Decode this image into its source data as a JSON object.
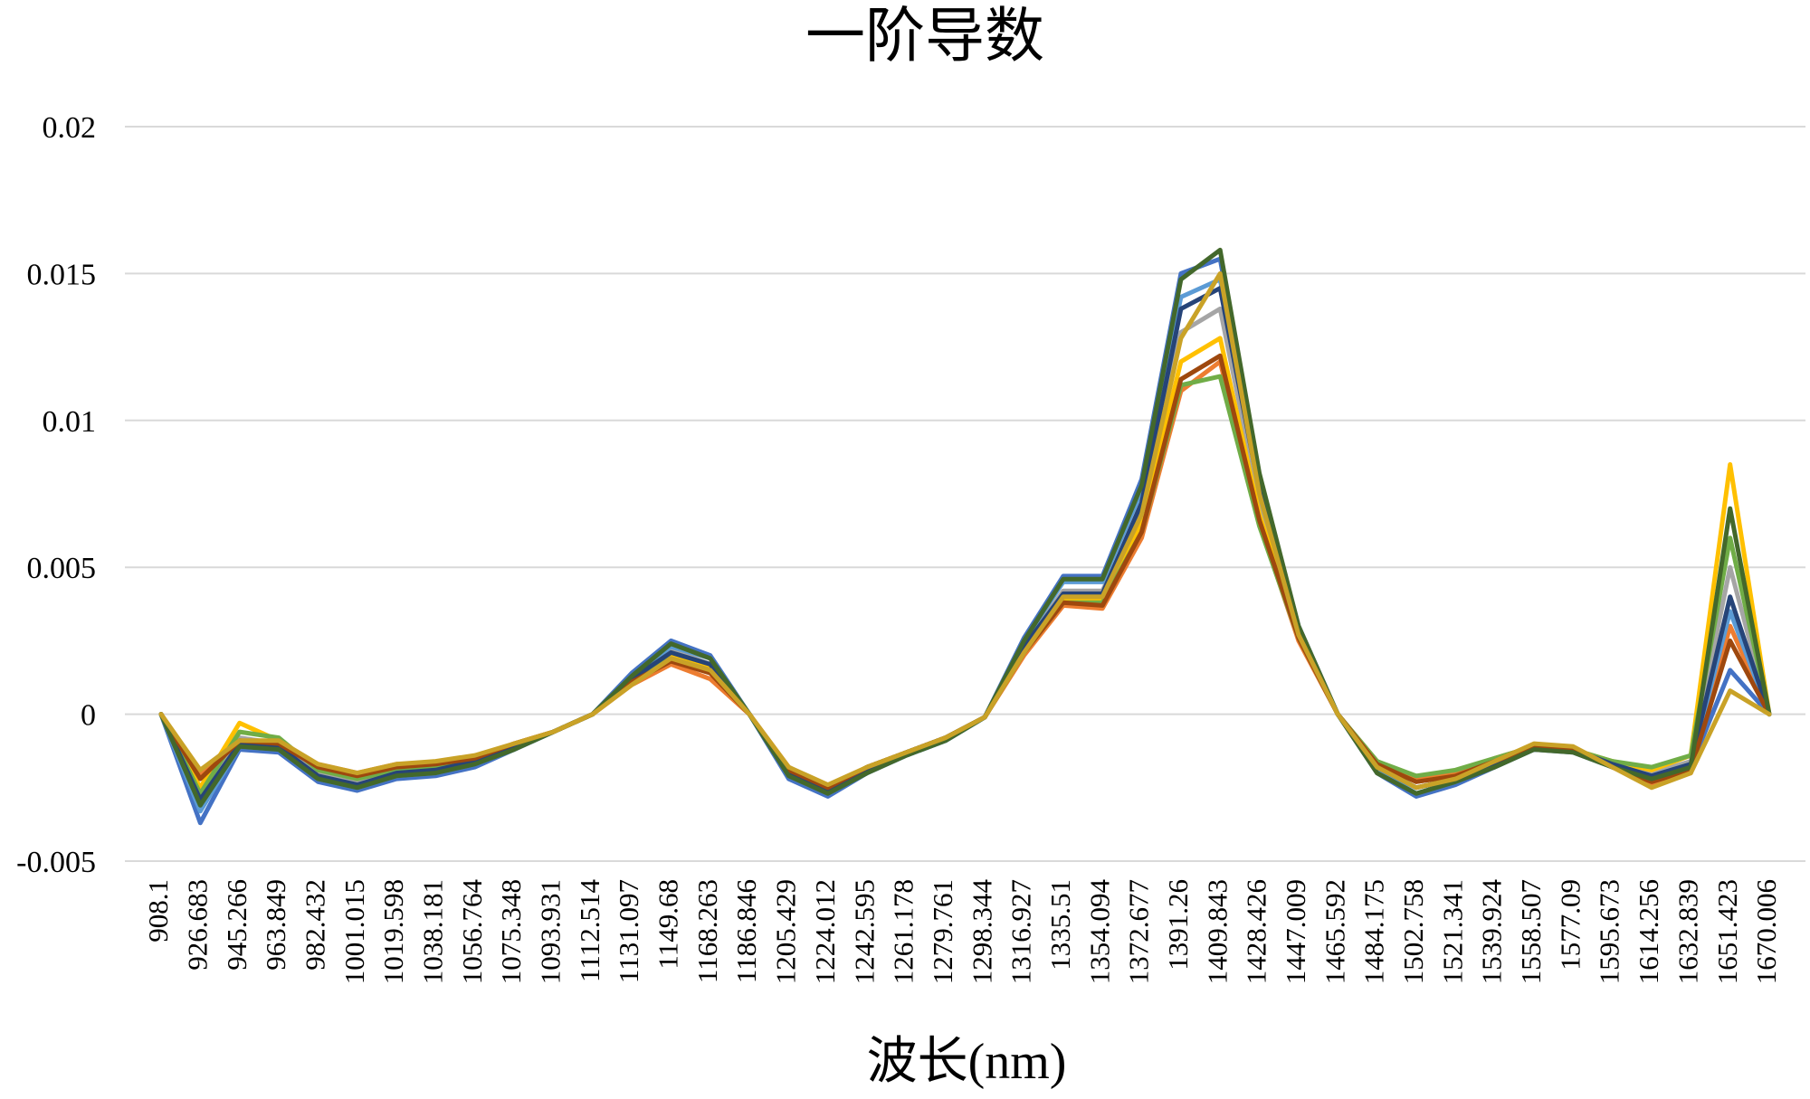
{
  "chart_data": {
    "type": "line",
    "title": "一阶导数",
    "xlabel": "波长(nm)",
    "ylabel": "",
    "ylim": [
      -0.005,
      0.02
    ],
    "grid": true,
    "legend": "none",
    "y_ticks": [
      "-0.005",
      "0",
      "0.005",
      "0.01",
      "0.015",
      "0.02"
    ],
    "y_tick_values": [
      -0.005,
      0,
      0.005,
      0.01,
      0.015,
      0.02
    ],
    "x_tick_labels": [
      "908.1",
      "926.683",
      "945.266",
      "963.849",
      "982.432",
      "1001.015",
      "1019.598",
      "1038.181",
      "1056.764",
      "1075.348",
      "1093.931",
      "1112.514",
      "1131.097",
      "1149.68",
      "1168.263",
      "1186.846",
      "1205.429",
      "1224.012",
      "1242.595",
      "1261.178",
      "1279.761",
      "1298.344",
      "1316.927",
      "1335.51",
      "1354.094",
      "1372.677",
      "1391.26",
      "1409.843",
      "1428.426",
      "1447.009",
      "1465.592",
      "1484.175",
      "1502.758",
      "1521.341",
      "1539.924",
      "1558.507",
      "1577.09",
      "1595.673",
      "1614.256",
      "1632.839",
      "1651.423",
      "1670.006"
    ],
    "x": [
      908.1,
      926.683,
      945.266,
      963.849,
      982.432,
      1001.015,
      1019.598,
      1038.181,
      1056.764,
      1075.348,
      1093.931,
      1112.514,
      1131.097,
      1149.68,
      1168.263,
      1186.846,
      1205.429,
      1224.012,
      1242.595,
      1261.178,
      1279.761,
      1298.344,
      1316.927,
      1335.51,
      1354.094,
      1372.677,
      1391.26,
      1409.843,
      1428.426,
      1447.009,
      1465.592,
      1484.175,
      1502.758,
      1521.341,
      1539.924,
      1558.507,
      1577.09,
      1595.673,
      1614.256,
      1632.839,
      1651.423,
      1670.006
    ],
    "series": [
      {
        "color": "#4472c4",
        "values": [
          0,
          -0.0037,
          -0.0012,
          -0.0013,
          -0.0023,
          -0.0026,
          -0.0022,
          -0.0021,
          -0.0018,
          -0.0012,
          -0.0006,
          0.0,
          0.0014,
          0.0025,
          0.002,
          0.0,
          -0.0022,
          -0.0028,
          -0.002,
          -0.0014,
          -0.0009,
          -0.0001,
          0.0026,
          0.0047,
          0.0047,
          0.008,
          0.015,
          0.0155,
          0.008,
          0.003,
          0.0,
          -0.002,
          -0.0028,
          -0.0024,
          -0.0018,
          -0.0012,
          -0.0013,
          -0.0018,
          -0.0022,
          -0.0018,
          0.0015,
          0
        ]
      },
      {
        "color": "#ed7d31",
        "values": [
          0,
          -0.002,
          -0.001,
          -0.001,
          -0.0017,
          -0.002,
          -0.0017,
          -0.0017,
          -0.0015,
          -0.001,
          -0.0006,
          0.0,
          0.001,
          0.0017,
          0.0012,
          0.0,
          -0.0018,
          -0.0025,
          -0.0018,
          -0.0013,
          -0.0008,
          -0.0001,
          0.002,
          0.0037,
          0.0036,
          0.006,
          0.011,
          0.012,
          0.0065,
          0.0025,
          0.0,
          -0.0016,
          -0.0022,
          -0.002,
          -0.0015,
          -0.0011,
          -0.0012,
          -0.0018,
          -0.0024,
          -0.002,
          0.003,
          0
        ]
      },
      {
        "color": "#a5a5a5",
        "values": [
          0,
          -0.003,
          -0.0008,
          -0.001,
          -0.002,
          -0.0023,
          -0.002,
          -0.0019,
          -0.0016,
          -0.0011,
          -0.0006,
          0.0,
          0.0012,
          0.0022,
          0.0017,
          0.0,
          -0.002,
          -0.0026,
          -0.0019,
          -0.0013,
          -0.0008,
          -0.0001,
          0.0023,
          0.0042,
          0.0042,
          0.007,
          0.013,
          0.0138,
          0.0072,
          0.0028,
          0.0,
          -0.0018,
          -0.0025,
          -0.0022,
          -0.0016,
          -0.0011,
          -0.0012,
          -0.0017,
          -0.002,
          -0.0016,
          0.005,
          0
        ]
      },
      {
        "color": "#ffc000",
        "values": [
          0,
          -0.0025,
          -0.0003,
          -0.0009,
          -0.0018,
          -0.0021,
          -0.0018,
          -0.0017,
          -0.0015,
          -0.001,
          -0.0006,
          0.0,
          0.0011,
          0.002,
          0.0016,
          0.0,
          -0.0019,
          -0.0025,
          -0.0018,
          -0.0013,
          -0.0008,
          -0.0001,
          0.0021,
          0.0039,
          0.0039,
          0.0065,
          0.012,
          0.0128,
          0.0068,
          0.0027,
          0.0,
          -0.0017,
          -0.0023,
          -0.0021,
          -0.0016,
          -0.0011,
          -0.0012,
          -0.0016,
          -0.0019,
          -0.0014,
          0.0085,
          0
        ]
      },
      {
        "color": "#5b9bd5",
        "values": [
          0,
          -0.0033,
          -0.0011,
          -0.0012,
          -0.0022,
          -0.0025,
          -0.0021,
          -0.002,
          -0.0017,
          -0.0012,
          -0.0006,
          0.0,
          0.0013,
          0.0023,
          0.0019,
          0.0,
          -0.0021,
          -0.0027,
          -0.002,
          -0.0014,
          -0.0009,
          -0.0001,
          0.0025,
          0.0045,
          0.0045,
          0.0076,
          0.0142,
          0.0148,
          0.0078,
          0.0029,
          0.0,
          -0.0019,
          -0.0027,
          -0.0023,
          -0.0017,
          -0.0012,
          -0.0012,
          -0.0017,
          -0.0021,
          -0.0017,
          0.0035,
          0
        ]
      },
      {
        "color": "#70ad47",
        "values": [
          0,
          -0.0027,
          -0.0006,
          -0.0008,
          -0.0019,
          -0.0022,
          -0.0019,
          -0.0018,
          -0.0016,
          -0.0011,
          -0.0006,
          0.0,
          0.0011,
          0.0019,
          0.0015,
          0.0,
          -0.0019,
          -0.0025,
          -0.0018,
          -0.0013,
          -0.0008,
          -0.0001,
          0.0021,
          0.0038,
          0.0038,
          0.0062,
          0.0112,
          0.0115,
          0.0064,
          0.0026,
          0.0,
          -0.0016,
          -0.0021,
          -0.0019,
          -0.0015,
          -0.0011,
          -0.0012,
          -0.0016,
          -0.0018,
          -0.0014,
          0.006,
          0
        ]
      },
      {
        "color": "#264478",
        "values": [
          0,
          -0.0029,
          -0.001,
          -0.0011,
          -0.0021,
          -0.0024,
          -0.002,
          -0.0019,
          -0.0016,
          -0.0011,
          -0.0006,
          0.0,
          0.0012,
          0.0021,
          0.0017,
          0.0,
          -0.002,
          -0.0026,
          -0.0019,
          -0.0013,
          -0.0008,
          -0.0001,
          0.0023,
          0.0041,
          0.0041,
          0.0072,
          0.0138,
          0.0145,
          0.0076,
          0.0028,
          0.0,
          -0.0018,
          -0.0025,
          -0.0022,
          -0.0017,
          -0.0012,
          -0.0012,
          -0.0017,
          -0.0021,
          -0.0017,
          0.004,
          0
        ]
      },
      {
        "color": "#9e480e",
        "values": [
          0,
          -0.0022,
          -0.0009,
          -0.001,
          -0.0018,
          -0.0021,
          -0.0018,
          -0.0017,
          -0.0015,
          -0.001,
          -0.0006,
          0.0,
          0.0011,
          0.0018,
          0.0014,
          0.0,
          -0.0019,
          -0.0025,
          -0.0018,
          -0.0013,
          -0.0008,
          -0.0001,
          0.0021,
          0.0038,
          0.0037,
          0.0062,
          0.0114,
          0.0122,
          0.0066,
          0.0026,
          0.0,
          -0.0017,
          -0.0023,
          -0.0021,
          -0.0016,
          -0.0011,
          -0.0012,
          -0.0018,
          -0.0023,
          -0.0019,
          0.0025,
          0
        ]
      },
      {
        "color": "#43682b",
        "values": [
          0,
          -0.0031,
          -0.0011,
          -0.0012,
          -0.0022,
          -0.0025,
          -0.0021,
          -0.002,
          -0.0017,
          -0.0012,
          -0.0006,
          0.0,
          0.0013,
          0.0024,
          0.0019,
          0.0,
          -0.0021,
          -0.0027,
          -0.002,
          -0.0014,
          -0.0009,
          -0.0001,
          0.0025,
          0.0046,
          0.0046,
          0.0078,
          0.0148,
          0.0158,
          0.0082,
          0.003,
          0.0,
          -0.002,
          -0.0027,
          -0.0023,
          -0.0018,
          -0.0012,
          -0.0013,
          -0.0018,
          -0.0022,
          -0.0018,
          0.007,
          0
        ]
      },
      {
        "color": "#c9a227",
        "values": [
          0,
          -0.0019,
          -0.0009,
          -0.0009,
          -0.0017,
          -0.002,
          -0.0017,
          -0.0016,
          -0.0014,
          -0.001,
          -0.0006,
          0.0,
          0.001,
          0.0019,
          0.0015,
          0.0,
          -0.0018,
          -0.0024,
          -0.0018,
          -0.0013,
          -0.0008,
          -0.0001,
          0.0021,
          0.004,
          0.004,
          0.0068,
          0.0128,
          0.015,
          0.0075,
          0.0027,
          0.0,
          -0.0018,
          -0.0025,
          -0.0022,
          -0.0016,
          -0.001,
          -0.0011,
          -0.0018,
          -0.0025,
          -0.002,
          0.0008,
          0
        ]
      }
    ]
  }
}
